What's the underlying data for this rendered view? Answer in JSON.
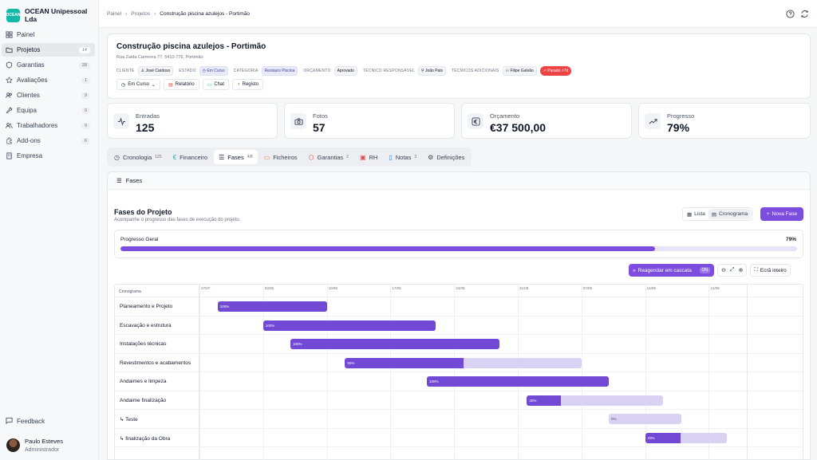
{
  "brand": {
    "name": "OCEAN Unipessoal Lda",
    "logo": "OCEAN"
  },
  "sidebar": {
    "items": [
      {
        "label": "Painel",
        "count": ""
      },
      {
        "label": "Projetos",
        "count": "14"
      },
      {
        "label": "Garantias",
        "count": "28"
      },
      {
        "label": "Avaliações",
        "count": "1"
      },
      {
        "label": "Clientes",
        "count": "9"
      },
      {
        "label": "Equipa",
        "count": "6"
      },
      {
        "label": "Trabalhadores",
        "count": "9"
      },
      {
        "label": "Add-ons",
        "count": "6"
      },
      {
        "label": "Empresa",
        "count": ""
      }
    ],
    "feedback": "Feedback",
    "user": {
      "name": "Paulo Esteves",
      "role": "Administrador"
    }
  },
  "breadcrumb": [
    "Painel",
    "Projetos",
    "Construção piscina azulejos - Portimão"
  ],
  "project": {
    "title": "Construção piscina azulejos - Portimão",
    "address": "Rua Zaida Carmona 77, 5410-776, Portimão",
    "meta": {
      "cliente_label": "CLIENTE",
      "cliente": "José Cardoso",
      "estado_label": "ESTADO",
      "estado": "Em Curso",
      "categoria_label": "CATEGORIA",
      "categoria": "Restauro Piscina",
      "orcamento_label": "ORÇAMENTO",
      "orcamento": "Aprovado",
      "tecnico_label": "TÉCNICO RESPONSÁVEL",
      "tecnico": "João Pais",
      "adicionais_label": "TÉCNICOS ADICIONAIS",
      "adicionais": "Filipe Galvão",
      "alert": "Parado >7d"
    },
    "actions": {
      "status": "Em Curso",
      "relatorio": "Relatório",
      "chat": "Chat",
      "registo": "Registo"
    }
  },
  "stats": [
    {
      "label": "Entradas",
      "value": "125"
    },
    {
      "label": "Fotos",
      "value": "57"
    },
    {
      "label": "Orçamento",
      "value": "€37 500,00"
    },
    {
      "label": "Progresso",
      "value": "79%"
    }
  ],
  "tabs": [
    {
      "label": "Cronologia",
      "count": "125"
    },
    {
      "label": "Financeiro",
      "count": ""
    },
    {
      "label": "Fases",
      "count": "4/8"
    },
    {
      "label": "Ficheiros",
      "count": ""
    },
    {
      "label": "Garantias",
      "count": "2"
    },
    {
      "label": "RH",
      "count": ""
    },
    {
      "label": "Notas",
      "count": "3"
    },
    {
      "label": "Definições",
      "count": ""
    }
  ],
  "phases": {
    "panel_title": "Fases",
    "title": "Fases do Projeto",
    "subtitle": "Acompanhe o progresso das fases de execução do projeto.",
    "view_list": "Lista",
    "view_gantt": "Cronograma",
    "new_phase": "Nova Fase",
    "overall_label": "Progresso Geral",
    "overall_value": "79%",
    "overall_fraction": 0.79,
    "regen_label": "Reagendar em cascata",
    "regen_state": "ON",
    "fullscreen": "Ecrã inteiro"
  },
  "gantt": {
    "column_label": "Cronograma",
    "dates": [
      "27/07",
      "03/08",
      "10/08",
      "17/08",
      "24/08",
      "31/08",
      "07/09",
      "14/09",
      "21/09"
    ],
    "rows": [
      {
        "name": "Planeamento e Projeto",
        "start_day": 2,
        "end_day": 14,
        "progress": 100,
        "label": "100%",
        "sub": false
      },
      {
        "name": "Escavação e estrutura",
        "start_day": 7,
        "end_day": 26,
        "progress": 100,
        "label": "100%",
        "sub": false
      },
      {
        "name": "Instalações técnicas",
        "start_day": 10,
        "end_day": 33,
        "progress": 100,
        "label": "100%",
        "sub": false
      },
      {
        "name": "Revestimentos e acabamentos",
        "start_day": 16,
        "end_day": 42,
        "progress": 50,
        "label": "50%",
        "sub": false
      },
      {
        "name": "Andaimes e limpeza",
        "start_day": 25,
        "end_day": 45,
        "progress": 100,
        "label": "100%",
        "sub": false
      },
      {
        "name": "Andaime finalização",
        "start_day": 36,
        "end_day": 51,
        "progress": 25,
        "label": "25%",
        "sub": false
      },
      {
        "name": "Teste",
        "start_day": 45,
        "end_day": 53,
        "progress": 0,
        "label": "0%",
        "sub": true
      },
      {
        "name": "finalização da Obra",
        "start_day": 49,
        "end_day": 58,
        "progress": 43,
        "label": "43%",
        "sub": true
      }
    ]
  },
  "colors": {
    "accent": "#7c4dde",
    "bar_fill": "#7249d4",
    "bar_track": "#d9d2f3",
    "alert": "#ef4444",
    "brand": "#14b8a6"
  }
}
